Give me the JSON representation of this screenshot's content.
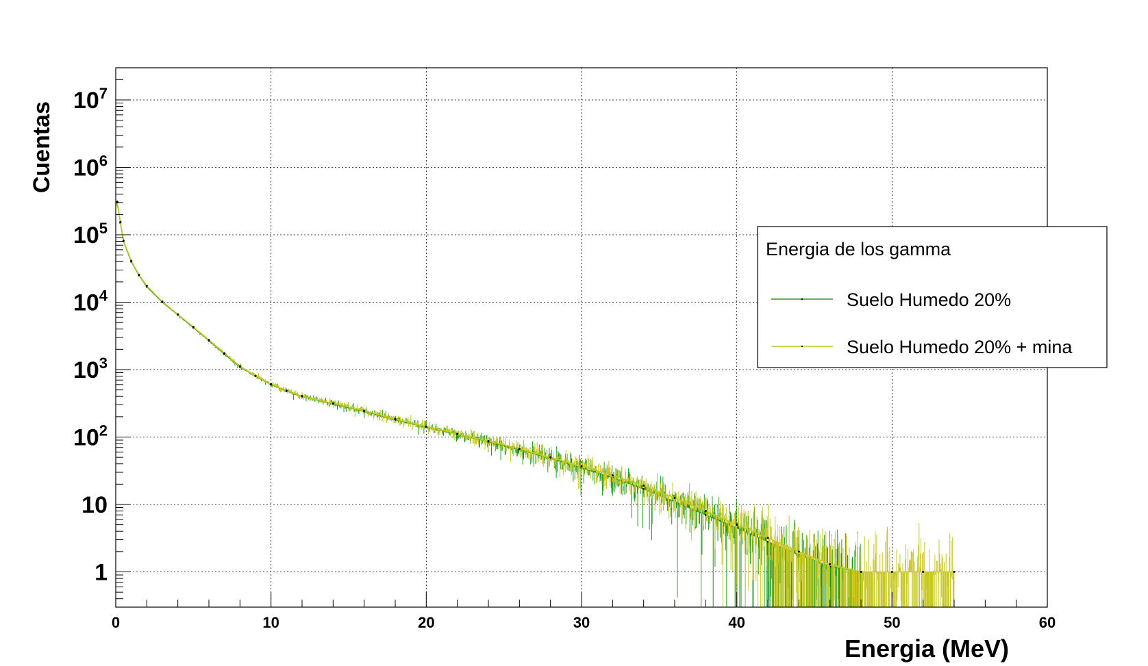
{
  "chart_data": {
    "type": "line",
    "title": "",
    "xlabel": "Energia (MeV)",
    "ylabel": "Cuentas",
    "xlim": [
      0,
      60
    ],
    "ylim": [
      0.3,
      30000000
    ],
    "yscale": "log",
    "grid": true,
    "legend_position": "top-right",
    "x_ticks": [
      {
        "value": 0,
        "label": "0"
      },
      {
        "value": 10,
        "label": "10"
      },
      {
        "value": 20,
        "label": "20"
      },
      {
        "value": 30,
        "label": "30"
      },
      {
        "value": 40,
        "label": "40"
      },
      {
        "value": 50,
        "label": "50"
      },
      {
        "value": 60,
        "label": "60"
      }
    ],
    "y_ticks": [
      {
        "value": 1,
        "label": "1",
        "sup": ""
      },
      {
        "value": 10,
        "label": "10",
        "sup": ""
      },
      {
        "value": 100,
        "label": "10",
        "sup": "2"
      },
      {
        "value": 1000,
        "label": "10",
        "sup": "3"
      },
      {
        "value": 10000,
        "label": "10",
        "sup": "4"
      },
      {
        "value": 100000,
        "label": "10",
        "sup": "5"
      },
      {
        "value": 1000000,
        "label": "10",
        "sup": "6"
      },
      {
        "value": 10000000,
        "label": "10",
        "sup": "7"
      }
    ],
    "legend": {
      "title": "Energia de los gamma"
    },
    "series": [
      {
        "name": "Suelo Humedo 20%",
        "color": "#1f9a1f",
        "x": [
          0.1,
          0.3,
          0.5,
          1,
          1.5,
          2,
          3,
          4,
          5,
          6,
          7,
          8,
          9,
          10,
          11,
          12,
          14,
          16,
          18,
          20,
          22,
          24,
          26,
          28,
          30,
          32,
          34,
          36,
          38,
          40,
          42,
          44,
          46,
          48
        ],
        "y": [
          300000,
          150000,
          80000,
          40000,
          25000,
          17000,
          10000,
          6500,
          4200,
          2700,
          1700,
          1100,
          800,
          600,
          480,
          400,
          310,
          240,
          180,
          140,
          110,
          85,
          65,
          48,
          35,
          25,
          17,
          11,
          7,
          4.5,
          2.8,
          1.8,
          1.2,
          1
        ]
      },
      {
        "name": "Suelo Humedo 20% + mina",
        "color": "#c8c820",
        "x": [
          0.1,
          0.3,
          0.5,
          1,
          1.5,
          2,
          3,
          4,
          5,
          6,
          7,
          8,
          9,
          10,
          11,
          12,
          14,
          16,
          18,
          20,
          22,
          24,
          26,
          28,
          30,
          32,
          34,
          36,
          38,
          40,
          42,
          44,
          46,
          48,
          50,
          52,
          54
        ],
        "y": [
          310000,
          155000,
          82000,
          41000,
          25500,
          17500,
          10200,
          6600,
          4300,
          2750,
          1750,
          1120,
          810,
          610,
          490,
          405,
          315,
          245,
          185,
          143,
          112,
          87,
          67,
          50,
          37,
          27,
          19,
          12.5,
          8,
          5,
          3.2,
          2,
          1.3,
          1,
          1,
          1,
          1
        ]
      }
    ]
  }
}
